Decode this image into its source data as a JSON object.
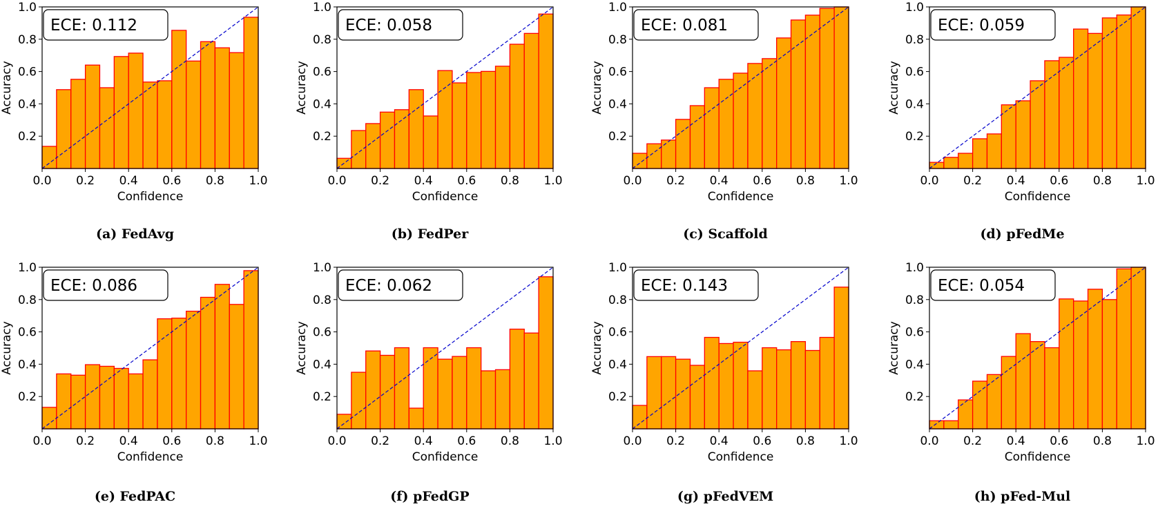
{
  "colors": {
    "bar_fill": "#FFA500",
    "bar_edge": "#FF0000",
    "diagonal": "#0000CC"
  },
  "chart_data": [
    {
      "type": "bar",
      "caption": "(a) FedAvg",
      "annotation": "ECE:  0.112",
      "xlabel": "Confidence",
      "ylabel": "Accuracy",
      "xlim": [
        0,
        1
      ],
      "ylim": [
        0,
        1
      ],
      "x_ticks": [
        "0.0",
        "0.2",
        "0.4",
        "0.6",
        "0.8",
        "1.0"
      ],
      "y_ticks": [
        "0.2",
        "0.4",
        "0.6",
        "0.8",
        "1.0"
      ],
      "bins": 15,
      "values": [
        0.137,
        0.488,
        0.552,
        0.64,
        0.5,
        0.693,
        0.714,
        0.535,
        0.543,
        0.855,
        0.665,
        0.785,
        0.747,
        0.717,
        0.936
      ]
    },
    {
      "type": "bar",
      "caption": "(b) FedPer",
      "annotation": "ECE:  0.058",
      "xlabel": "Confidence",
      "ylabel": "Accuracy",
      "xlim": [
        0,
        1
      ],
      "ylim": [
        0,
        1
      ],
      "x_ticks": [
        "0.0",
        "0.2",
        "0.4",
        "0.6",
        "0.8",
        "1.0"
      ],
      "y_ticks": [
        "0.2",
        "0.4",
        "0.6",
        "0.8",
        "1.0"
      ],
      "bins": 15,
      "values": [
        0.063,
        0.235,
        0.278,
        0.349,
        0.364,
        0.488,
        0.325,
        0.606,
        0.53,
        0.594,
        0.601,
        0.633,
        0.769,
        0.836,
        0.956
      ]
    },
    {
      "type": "bar",
      "caption": "(c) Scaffold",
      "annotation": "ECE:  0.081",
      "xlabel": "Confidence",
      "ylabel": "Accuracy",
      "xlim": [
        0,
        1
      ],
      "ylim": [
        0,
        1
      ],
      "x_ticks": [
        "0.0",
        "0.2",
        "0.4",
        "0.6",
        "0.8",
        "1.0"
      ],
      "y_ticks": [
        "0.2",
        "0.4",
        "0.6",
        "0.8",
        "1.0"
      ],
      "bins": 15,
      "values": [
        0.094,
        0.153,
        0.176,
        0.304,
        0.389,
        0.5,
        0.552,
        0.59,
        0.65,
        0.68,
        0.808,
        0.919,
        0.949,
        0.991,
        1.0
      ]
    },
    {
      "type": "bar",
      "caption": "(d) pFedMe",
      "annotation": "ECE:  0.059",
      "xlabel": "Confidence",
      "ylabel": "Accuracy",
      "xlim": [
        0,
        1
      ],
      "ylim": [
        0,
        1
      ],
      "x_ticks": [
        "0.0",
        "0.2",
        "0.4",
        "0.6",
        "0.8",
        "1.0"
      ],
      "y_ticks": [
        "0.2",
        "0.4",
        "0.6",
        "0.8",
        "1.0"
      ],
      "bins": 15,
      "values": [
        0.038,
        0.069,
        0.094,
        0.184,
        0.214,
        0.394,
        0.419,
        0.543,
        0.667,
        0.688,
        0.863,
        0.836,
        0.932,
        0.95,
        1.0
      ]
    },
    {
      "type": "bar",
      "caption": "(e) FedPAC",
      "annotation": "ECE:  0.086",
      "xlabel": "Confidence",
      "ylabel": "Accuracy",
      "xlim": [
        0,
        1
      ],
      "ylim": [
        0,
        1
      ],
      "x_ticks": [
        "0.0",
        "0.2",
        "0.4",
        "0.6",
        "0.8",
        "1.0"
      ],
      "y_ticks": [
        "0.2",
        "0.4",
        "0.6",
        "0.8",
        "1.0"
      ],
      "bins": 15,
      "values": [
        0.133,
        0.34,
        0.332,
        0.397,
        0.387,
        0.374,
        0.34,
        0.427,
        0.681,
        0.685,
        0.728,
        0.814,
        0.894,
        0.77,
        0.979
      ]
    },
    {
      "type": "bar",
      "caption": "(f) pFedGP",
      "annotation": "ECE:  0.062",
      "xlabel": "Confidence",
      "ylabel": "Accuracy",
      "xlim": [
        0,
        1
      ],
      "ylim": [
        0,
        1
      ],
      "x_ticks": [
        "0.0",
        "0.2",
        "0.4",
        "0.6",
        "0.8",
        "1.0"
      ],
      "y_ticks": [
        "0.2",
        "0.4",
        "0.6",
        "0.8",
        "1.0"
      ],
      "bins": 15,
      "values": [
        0.09,
        0.35,
        0.482,
        0.455,
        0.502,
        0.128,
        0.502,
        0.431,
        0.448,
        0.502,
        0.359,
        0.366,
        0.617,
        0.593,
        0.941
      ]
    },
    {
      "type": "bar",
      "caption": "(g) pFedVEM",
      "annotation": "ECE:  0.143",
      "xlabel": "Confidence",
      "ylabel": "Accuracy",
      "xlim": [
        0,
        1
      ],
      "ylim": [
        0,
        1
      ],
      "x_ticks": [
        "0.0",
        "0.2",
        "0.4",
        "0.6",
        "0.8",
        "1.0"
      ],
      "y_ticks": [
        "0.2",
        "0.4",
        "0.6",
        "0.8",
        "1.0"
      ],
      "bins": 15,
      "values": [
        0.145,
        0.447,
        0.447,
        0.431,
        0.393,
        0.566,
        0.528,
        0.536,
        0.359,
        0.502,
        0.489,
        0.54,
        0.485,
        0.566,
        0.877
      ]
    },
    {
      "type": "bar",
      "caption": "(h) pFed-Mul",
      "annotation": "ECE:  0.054",
      "xlabel": "Confidence",
      "ylabel": "Accuracy",
      "xlim": [
        0,
        1
      ],
      "ylim": [
        0,
        1
      ],
      "x_ticks": [
        "0.0",
        "0.2",
        "0.4",
        "0.6",
        "0.8",
        "1.0"
      ],
      "y_ticks": [
        "0.2",
        "0.4",
        "0.6",
        "0.8",
        "1.0"
      ],
      "bins": 15,
      "values": [
        0.05,
        0.05,
        0.179,
        0.295,
        0.336,
        0.448,
        0.589,
        0.54,
        0.502,
        0.804,
        0.791,
        0.864,
        0.8,
        0.99,
        1.0
      ]
    }
  ]
}
